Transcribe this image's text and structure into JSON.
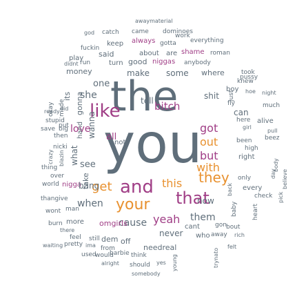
{
  "palette": {
    "gray": "#5f6e7a",
    "orange": "#e8912f",
    "purple": "#a03e86",
    "teal": "#5aa78f",
    "green": "#3c8e6e"
  },
  "words": [
    {
      "text": "you",
      "color": "gray"
    },
    {
      "text": "the",
      "color": "gray"
    },
    {
      "text": "and",
      "color": "purple"
    },
    {
      "text": "like",
      "color": "purple"
    },
    {
      "text": "your",
      "color": "orange"
    },
    {
      "text": "that",
      "color": "purple"
    },
    {
      "text": "they",
      "color": "orange"
    },
    {
      "text": "this",
      "color": "orange"
    },
    {
      "text": "get",
      "color": "orange"
    },
    {
      "text": "when",
      "color": "gray"
    },
    {
      "text": "love",
      "color": "purple"
    },
    {
      "text": "with",
      "color": "orange"
    },
    {
      "text": "bitch",
      "color": "purple"
    },
    {
      "text": "got",
      "color": "purple"
    },
    {
      "text": "but",
      "color": "purple"
    },
    {
      "text": "out",
      "color": "orange"
    },
    {
      "text": "yeah",
      "color": "purple"
    },
    {
      "text": "cause",
      "color": "gray"
    },
    {
      "text": "never",
      "color": "gray"
    },
    {
      "text": "them",
      "color": "gray"
    },
    {
      "text": "now",
      "color": "gray"
    },
    {
      "text": "can",
      "color": "gray"
    },
    {
      "text": "shit",
      "color": "gray"
    },
    {
      "text": "tell",
      "color": "gray"
    },
    {
      "text": "make",
      "color": "gray"
    },
    {
      "text": "some",
      "color": "gray"
    },
    {
      "text": "where",
      "color": "gray"
    },
    {
      "text": "she",
      "color": "gray"
    },
    {
      "text": "one",
      "color": "gray"
    },
    {
      "text": "said",
      "color": "gray"
    },
    {
      "text": "about",
      "color": "gray"
    },
    {
      "text": "are",
      "color": "gray"
    },
    {
      "text": "shame",
      "color": "purple"
    },
    {
      "text": "roman",
      "color": "gray"
    },
    {
      "text": "good",
      "color": "gray"
    },
    {
      "text": "niggas",
      "color": "purple"
    },
    {
      "text": "anybody",
      "color": "gray"
    },
    {
      "text": "turn",
      "color": "gray"
    },
    {
      "text": "play",
      "color": "gray"
    },
    {
      "text": "money",
      "color": "gray"
    },
    {
      "text": "keep",
      "color": "gray"
    },
    {
      "text": "always",
      "color": "purple"
    },
    {
      "text": "gotta",
      "color": "gray"
    },
    {
      "text": "work",
      "color": "gray"
    },
    {
      "text": "everything",
      "color": "gray"
    },
    {
      "text": "came",
      "color": "gray"
    },
    {
      "text": "dominoes",
      "color": "gray"
    },
    {
      "text": "catch",
      "color": "gray"
    },
    {
      "text": "awaymaterial",
      "color": "gray"
    },
    {
      "text": "god",
      "color": "gray"
    },
    {
      "text": "fuckin",
      "color": "gray"
    },
    {
      "text": "run",
      "color": "gray"
    },
    {
      "text": "didnt",
      "color": "gray"
    },
    {
      "text": "okay",
      "color": "gray"
    },
    {
      "text": "made",
      "color": "gray"
    },
    {
      "text": "ready",
      "color": "gray"
    },
    {
      "text": "did",
      "color": "gray"
    },
    {
      "text": "stupid",
      "color": "gray"
    },
    {
      "text": "save",
      "color": "gray"
    },
    {
      "text": "big",
      "color": "gray"
    },
    {
      "text": "put",
      "color": "gray"
    },
    {
      "text": "then",
      "color": "gray"
    },
    {
      "text": "nicki",
      "color": "gray"
    },
    {
      "text": "crazy",
      "color": "gray"
    },
    {
      "text": "blazin",
      "color": "gray"
    },
    {
      "text": "thing",
      "color": "gray"
    },
    {
      "text": "over",
      "color": "gray"
    },
    {
      "text": "see",
      "color": "gray"
    },
    {
      "text": "world",
      "color": "gray"
    },
    {
      "text": "nigga",
      "color": "purple"
    },
    {
      "text": "bang",
      "color": "gray"
    },
    {
      "text": "thangive",
      "color": "gray"
    },
    {
      "text": "wont",
      "color": "gray"
    },
    {
      "text": "man",
      "color": "gray"
    },
    {
      "text": "burn",
      "color": "gray"
    },
    {
      "text": "more",
      "color": "gray"
    },
    {
      "text": "omgirls",
      "color": "purple"
    },
    {
      "text": "there",
      "color": "gray"
    },
    {
      "text": "feel",
      "color": "gray"
    },
    {
      "text": "still",
      "color": "gray"
    },
    {
      "text": "dem",
      "color": "gray"
    },
    {
      "text": "off",
      "color": "gray"
    },
    {
      "text": "waiting",
      "color": "gray"
    },
    {
      "text": "pretty",
      "color": "gray"
    },
    {
      "text": "ima",
      "color": "gray"
    },
    {
      "text": "from",
      "color": "gray"
    },
    {
      "text": "used",
      "color": "gray"
    },
    {
      "text": "would",
      "color": "gray"
    },
    {
      "text": "barbie",
      "color": "gray"
    },
    {
      "text": "think",
      "color": "gray"
    },
    {
      "text": "alright",
      "color": "gray"
    },
    {
      "text": "should",
      "color": "gray"
    },
    {
      "text": "yes",
      "color": "gray"
    },
    {
      "text": "somebody",
      "color": "gray"
    },
    {
      "text": "young",
      "color": "gray"
    },
    {
      "text": "trynato",
      "color": "gray"
    },
    {
      "text": "needreal",
      "color": "gray"
    },
    {
      "text": "cant",
      "color": "gray"
    },
    {
      "text": "who",
      "color": "gray"
    },
    {
      "text": "away",
      "color": "gray"
    },
    {
      "text": "rich",
      "color": "gray"
    },
    {
      "text": "felt",
      "color": "gray"
    },
    {
      "text": "gon",
      "color": "gray"
    },
    {
      "text": "bout",
      "color": "gray"
    },
    {
      "text": "every",
      "color": "gray"
    },
    {
      "text": "back",
      "color": "gray"
    },
    {
      "text": "heart",
      "color": "gray"
    },
    {
      "text": "pick",
      "color": "gray"
    },
    {
      "text": "believe",
      "color": "gray"
    },
    {
      "text": "day",
      "color": "gray"
    },
    {
      "text": "body",
      "color": "gray"
    },
    {
      "text": "only",
      "color": "gray"
    },
    {
      "text": "high",
      "color": "gray"
    },
    {
      "text": "been",
      "color": "gray"
    },
    {
      "text": "beez",
      "color": "gray"
    },
    {
      "text": "right",
      "color": "gray"
    },
    {
      "text": "girl",
      "color": "gray"
    },
    {
      "text": "pull",
      "color": "gray"
    },
    {
      "text": "here",
      "color": "gray"
    },
    {
      "text": "alive",
      "color": "gray"
    },
    {
      "text": "boy",
      "color": "gray"
    },
    {
      "text": "hoe",
      "color": "gray"
    },
    {
      "text": "night",
      "color": "gray"
    },
    {
      "text": "much",
      "color": "gray"
    },
    {
      "text": "took",
      "color": "gray"
    },
    {
      "text": "pussy",
      "color": "gray"
    },
    {
      "text": "knew",
      "color": "gray"
    },
    {
      "text": "fly",
      "color": "gray"
    },
    {
      "text": "hand",
      "color": "gray"
    },
    {
      "text": "wanna",
      "color": "gray"
    },
    {
      "text": "gonna",
      "color": "gray"
    },
    {
      "text": "what",
      "color": "gray"
    },
    {
      "text": "all",
      "color": "purple"
    },
    {
      "text": "not",
      "color": "gray"
    },
    {
      "text": "baby",
      "color": "gray"
    },
    {
      "text": "just",
      "color": "gray"
    },
    {
      "text": "its",
      "color": "gray"
    },
    {
      "text": "take",
      "color": "gray"
    },
    {
      "text": "check",
      "color": "gray"
    }
  ]
}
